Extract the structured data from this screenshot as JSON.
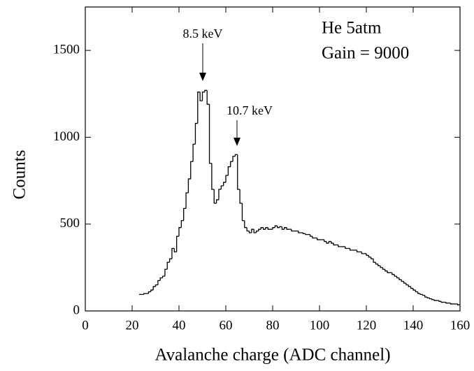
{
  "chart_data": {
    "type": "histogram",
    "xlabel": "Avalanche charge (ADC channel)",
    "ylabel": "Counts",
    "annotations": [
      "8.5 keV",
      "10.7 keV",
      "He 5atm",
      "Gain = 9000"
    ],
    "color": "#000000",
    "xlim": [
      0,
      160
    ],
    "xticks": [
      0,
      20,
      40,
      60,
      80,
      100,
      120,
      140,
      160
    ],
    "ylim": [
      0,
      1750
    ],
    "yticks": [
      0,
      500,
      1000,
      1500
    ],
    "bins": [
      23,
      24,
      25,
      26,
      27,
      28,
      29,
      30,
      31,
      32,
      33,
      34,
      35,
      36,
      37,
      38,
      39,
      40,
      41,
      42,
      43,
      44,
      45,
      46,
      47,
      48,
      49,
      50,
      51,
      52,
      53,
      54,
      55,
      56,
      57,
      58,
      59,
      60,
      61,
      62,
      63,
      64,
      65,
      66,
      67,
      68,
      69,
      70,
      71,
      72,
      73,
      74,
      75,
      76,
      77,
      78,
      79,
      80,
      81,
      82,
      83,
      84,
      85,
      86,
      87,
      88,
      89,
      90,
      91,
      92,
      93,
      94,
      95,
      96,
      97,
      98,
      99,
      100,
      101,
      102,
      103,
      104,
      105,
      106,
      107,
      108,
      109,
      110,
      111,
      112,
      113,
      114,
      115,
      116,
      117,
      118,
      119,
      120,
      121,
      122,
      123,
      124,
      125,
      126,
      127,
      128,
      129,
      130,
      131,
      132,
      133,
      134,
      135,
      136,
      137,
      138,
      139,
      140,
      141,
      142,
      143,
      144,
      145,
      146,
      147,
      148,
      149,
      150,
      151,
      152,
      153,
      154,
      155,
      156,
      157,
      158,
      159,
      160
    ],
    "counts": [
      95,
      95,
      100,
      100,
      110,
      120,
      140,
      150,
      175,
      190,
      200,
      240,
      280,
      300,
      360,
      340,
      430,
      480,
      520,
      590,
      680,
      760,
      860,
      960,
      1080,
      1260,
      1210,
      1260,
      1270,
      1190,
      850,
      700,
      620,
      640,
      700,
      720,
      740,
      780,
      830,
      860,
      890,
      900,
      700,
      620,
      520,
      480,
      460,
      450,
      470,
      450,
      460,
      470,
      480,
      470,
      480,
      470,
      470,
      480,
      490,
      480,
      485,
      470,
      480,
      470,
      470,
      460,
      460,
      460,
      450,
      450,
      445,
      440,
      440,
      430,
      420,
      420,
      410,
      410,
      410,
      400,
      390,
      400,
      390,
      380,
      380,
      370,
      370,
      370,
      360,
      360,
      350,
      350,
      350,
      340,
      340,
      330,
      330,
      320,
      310,
      300,
      280,
      270,
      260,
      250,
      240,
      230,
      220,
      220,
      210,
      200,
      190,
      180,
      170,
      160,
      150,
      140,
      130,
      120,
      110,
      100,
      95,
      90,
      80,
      75,
      70,
      65,
      60,
      60,
      55,
      50,
      50,
      45,
      45,
      40,
      40,
      40,
      35
    ]
  }
}
